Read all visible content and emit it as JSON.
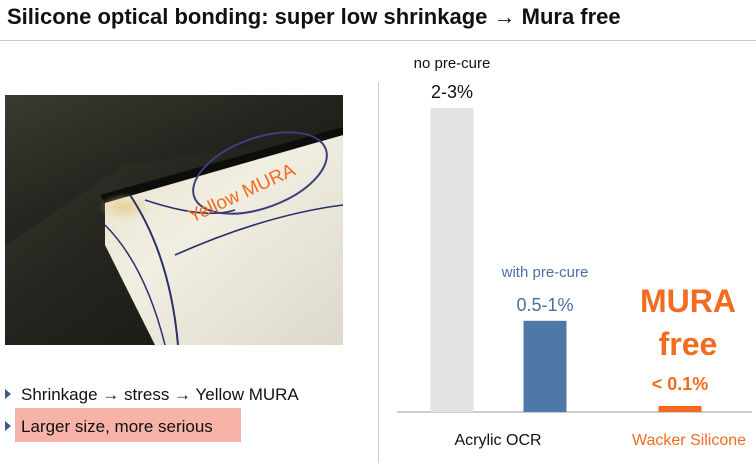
{
  "slide": {
    "title": "Silicone optical bonding: super low shrinkage → Mura free"
  },
  "photo": {
    "annotation": "Yellow MURA",
    "annotation_color": "#f26b21"
  },
  "bullets": [
    {
      "text": "Shrinkage → stress → Yellow MURA",
      "highlighted": false
    },
    {
      "text": "Larger size, more serious",
      "highlighted": true
    }
  ],
  "colors": {
    "accent_orange": "#f26b21",
    "bar_gray": "#e2e2e2",
    "bar_blue": "#4f78a9",
    "label_blue": "#4a6fa5",
    "highlight": "#f8b3a8"
  },
  "chart_data": {
    "type": "bar",
    "categories": [
      "Acrylic OCR",
      "Wacker Silicone"
    ],
    "series": [
      {
        "name": "no pre-cure",
        "label": "2-3%",
        "value": 2.5
      },
      {
        "name": "with pre-cure",
        "label": "0.5-1%",
        "value": 0.75
      },
      {
        "name": "",
        "label": "< 0.1%",
        "value": 0.05
      }
    ],
    "callout": [
      "MURA",
      "free"
    ]
  }
}
